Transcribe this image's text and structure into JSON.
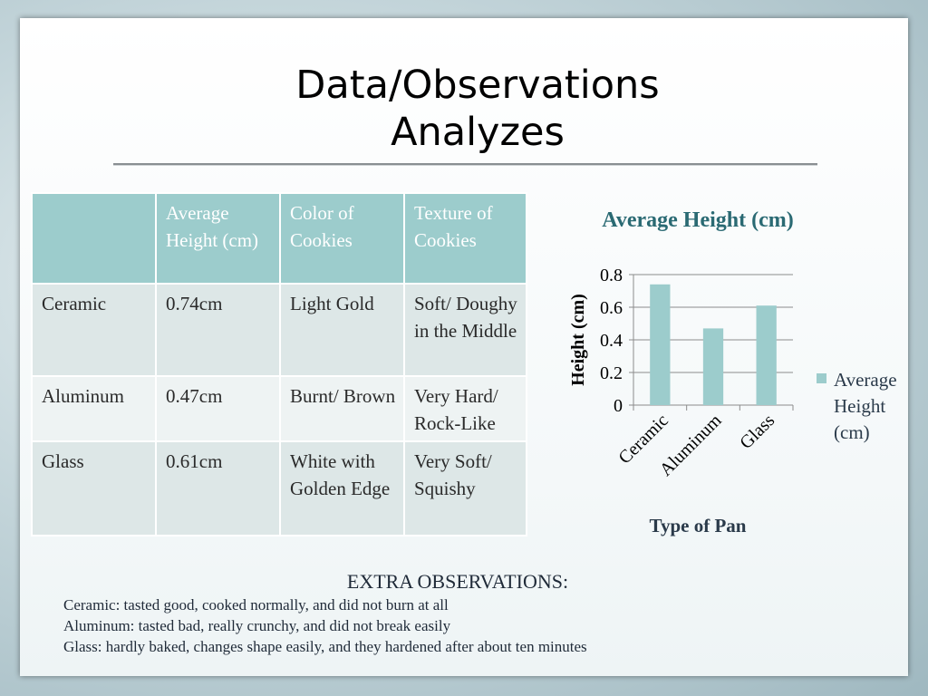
{
  "slide": {
    "title": "Data/Observations\nAnalyzes"
  },
  "table": {
    "headers": [
      "",
      "Average Height (cm)",
      "Color of Cookies",
      "Texture of Cookies"
    ],
    "rows": [
      [
        "Ceramic",
        "0.74cm",
        "Light Gold",
        "Soft/ Doughy in the Middle"
      ],
      [
        "Aluminum",
        "0.47cm",
        "Burnt/ Brown",
        "Very Hard/ Rock-Like"
      ],
      [
        "Glass",
        "0.61cm",
        "White with Golden Edge",
        "Very Soft/ Squishy"
      ]
    ]
  },
  "chart_data": {
    "type": "bar",
    "title": "Average Height (cm)",
    "xlabel": "Type of Pan",
    "ylabel": "Height (cm)",
    "categories": [
      "Ceramic",
      "Aluminum",
      "Glass"
    ],
    "series": [
      {
        "name": "Average Height (cm)",
        "values": [
          0.74,
          0.47,
          0.61
        ],
        "color": "#9ccccc"
      }
    ],
    "ylim": [
      0,
      0.8
    ],
    "yticks": [
      "0",
      "0.2",
      "0.4",
      "0.6",
      "0.8"
    ],
    "grid": true,
    "legend": "right",
    "legend_lines": [
      "Average",
      "Height",
      "(cm)"
    ]
  },
  "extra": {
    "heading": "EXTRA OBSERVATIONS:",
    "lines": [
      "Ceramic: tasted good, cooked normally, and did not burn at all",
      "Aluminum: tasted bad, really crunchy, and did not break easily",
      "Glass: hardly baked, changes shape easily, and they hardened after about ten minutes"
    ]
  }
}
